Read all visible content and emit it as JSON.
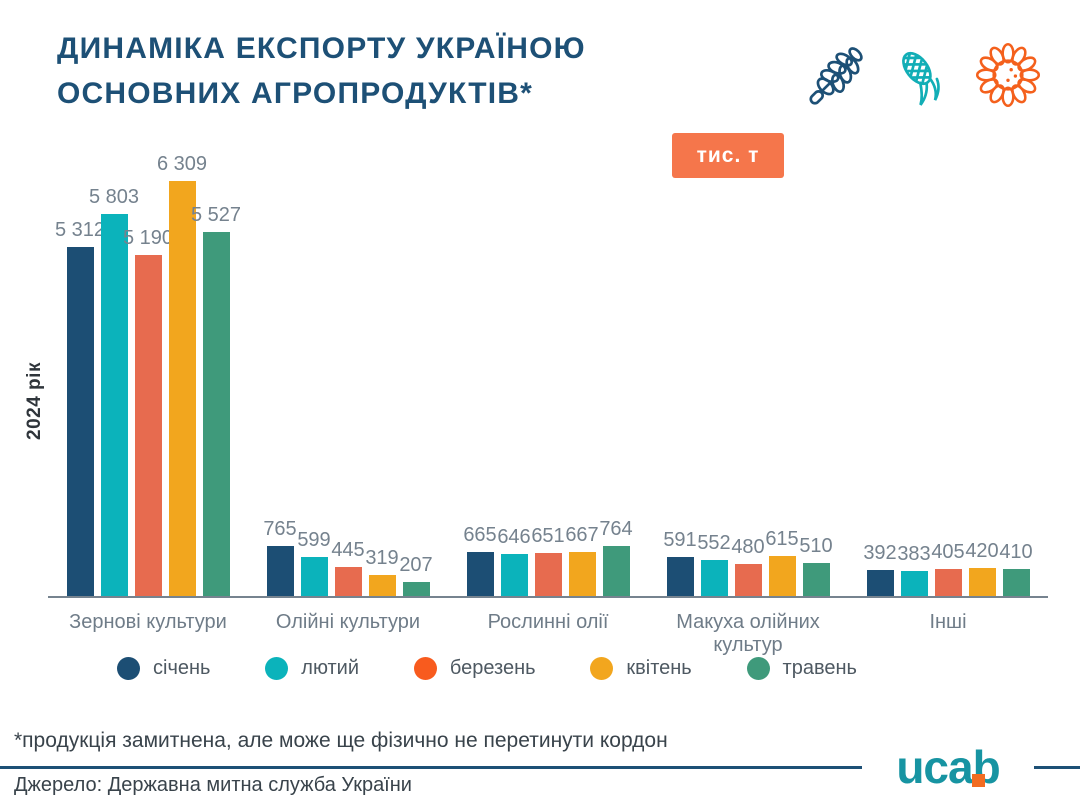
{
  "header": {
    "title_line1": "ДИНАМІКА ЕКСПОРТУ УКРАЇНОЮ",
    "title_line2": "ОСНОВНИХ АГРОПРОДУКТІВ*",
    "unit_badge": "тис. т",
    "icons": [
      "wheat-icon",
      "corn-icon",
      "sunflower-icon"
    ]
  },
  "chart_data": {
    "type": "bar",
    "title": "ДИНАМІКА ЕКСПОРТУ УКРАЇНОЮ ОСНОВНИХ АГРОПРОДУКТІВ*",
    "unit": "тис. т",
    "year_label": "2024 рік",
    "categories": [
      "Зернові культури",
      "Олійні культури",
      "Рослинні олії",
      "Макуха олійних культур",
      "Інші"
    ],
    "series": [
      {
        "name": "січень",
        "color": "#1c4e74",
        "values": [
          5312,
          765,
          665,
          591,
          392
        ],
        "labels": [
          "5 312",
          "765",
          "665",
          "591",
          "392"
        ]
      },
      {
        "name": "лютий",
        "color": "#0bb3bb",
        "values": [
          5803,
          599,
          646,
          552,
          383
        ],
        "labels": [
          "5 803",
          "599",
          "646",
          "552",
          "383"
        ]
      },
      {
        "name": "березень",
        "color": "#e76b4f",
        "legend_color": "#f85b1e",
        "values": [
          5190,
          445,
          651,
          480,
          405
        ],
        "labels": [
          "5 190",
          "445",
          "651",
          "480",
          "405"
        ]
      },
      {
        "name": "квітень",
        "color": "#f2a61e",
        "values": [
          6309,
          319,
          667,
          615,
          420
        ],
        "labels": [
          "6 309",
          "319",
          "667",
          "615",
          "420"
        ]
      },
      {
        "name": "травень",
        "color": "#3f9a7b",
        "values": [
          5527,
          207,
          764,
          510,
          410
        ],
        "labels": [
          "5 527",
          "207",
          "764",
          "510",
          "410"
        ]
      }
    ],
    "ymax": 6309,
    "ylim": [
      0,
      6500
    ],
    "grid": false,
    "legend_position": "bottom"
  },
  "footer": {
    "footnote": "*продукція замитнена, але може ще фізично не перетинути кордон",
    "source": "Джерело: Державна митна служба України",
    "logo_text": "ucab"
  },
  "colors": {
    "title": "#1d5076",
    "badge_bg": "#f5764b",
    "axis_line": "#76838f",
    "value_label": "#75828e",
    "category_label": "#6f7c88",
    "legend_text": "#4e5962",
    "footer_text": "#39434b",
    "divider": "#1d5076",
    "logo_teal": "#1794a2",
    "logo_orange": "#f26c21"
  }
}
